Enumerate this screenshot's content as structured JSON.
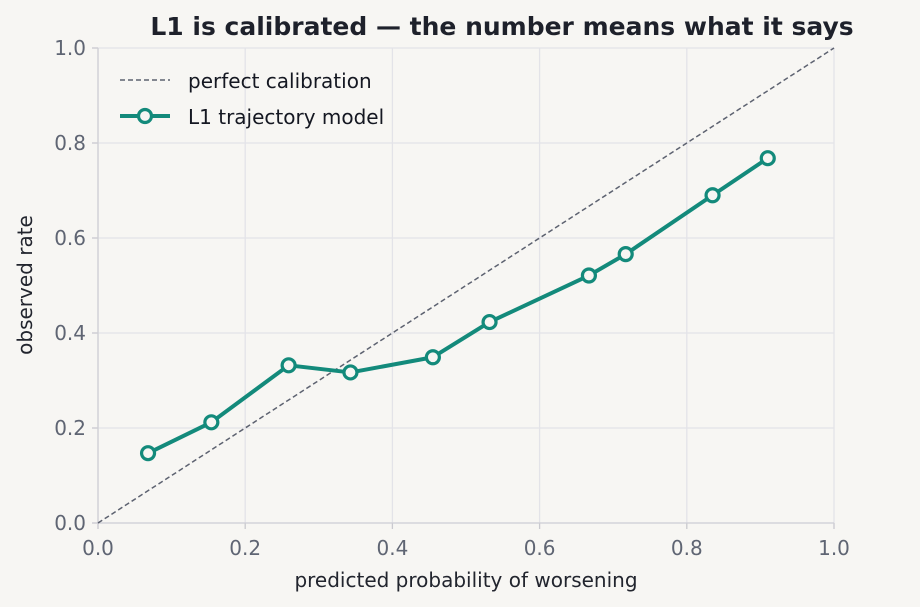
{
  "chart_data": {
    "type": "line",
    "title": "L1 is calibrated — the number means what it says",
    "xlabel": "predicted probability of worsening",
    "ylabel": "observed rate",
    "xlim": [
      0,
      1
    ],
    "ylim": [
      0,
      1
    ],
    "xticks": [
      "0.0",
      "0.2",
      "0.4",
      "0.6",
      "0.8",
      "1.0"
    ],
    "yticks": [
      "0.0",
      "0.2",
      "0.4",
      "0.6",
      "0.8",
      "1.0"
    ],
    "grid": true,
    "legend_position": "top-left",
    "series": [
      {
        "name": "perfect calibration",
        "style": "dashed",
        "color": "#5d6270",
        "x": [
          0,
          1
        ],
        "y": [
          0,
          1
        ]
      },
      {
        "name": "L1 trajectory model",
        "style": "line-with-open-markers",
        "color": "#138a7b",
        "x": [
          0.068,
          0.154,
          0.259,
          0.343,
          0.455,
          0.532,
          0.667,
          0.717,
          0.835,
          0.91
        ],
        "y": [
          0.147,
          0.212,
          0.332,
          0.317,
          0.349,
          0.423,
          0.521,
          0.566,
          0.69,
          0.768
        ]
      }
    ]
  }
}
